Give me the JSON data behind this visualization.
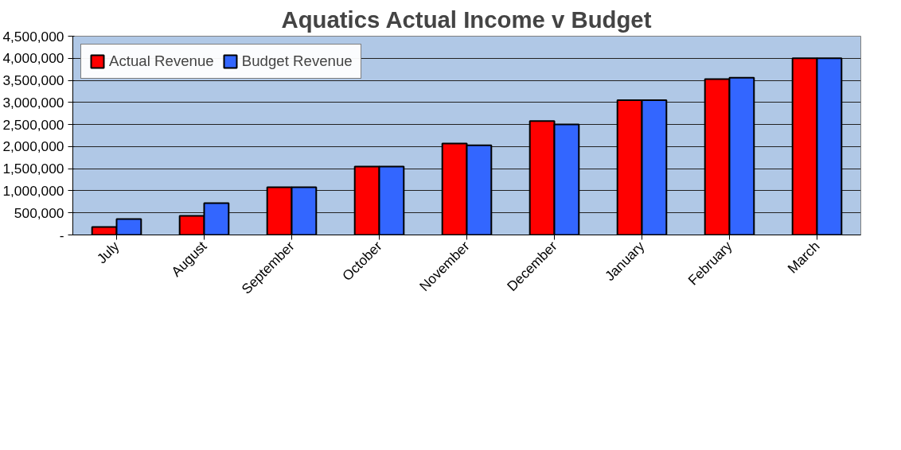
{
  "chart_data": {
    "type": "bar",
    "title": "Aquatics Actual Income v Budget",
    "categories": [
      "July",
      "August",
      "September",
      "October",
      "November",
      "December",
      "January",
      "February",
      "March"
    ],
    "series": [
      {
        "name": "Actual Revenue",
        "color": "#ff0000",
        "values": [
          180000,
          430000,
          1080000,
          1550000,
          2070000,
          2580000,
          3050000,
          3530000,
          4000000
        ]
      },
      {
        "name": "Budget Revenue",
        "color": "#3366ff",
        "values": [
          360000,
          720000,
          1080000,
          1550000,
          2030000,
          2500000,
          3050000,
          3560000,
          4000000
        ]
      }
    ],
    "ylim": [
      0,
      4500000
    ],
    "yticks": [
      {
        "value": 0,
        "label": "-"
      },
      {
        "value": 500000,
        "label": "500,000"
      },
      {
        "value": 1000000,
        "label": "1,000,000"
      },
      {
        "value": 1500000,
        "label": "1,500,000"
      },
      {
        "value": 2000000,
        "label": "2,000,000"
      },
      {
        "value": 2500000,
        "label": "2,500,000"
      },
      {
        "value": 3000000,
        "label": "3,000,000"
      },
      {
        "value": 3500000,
        "label": "3,500,000"
      },
      {
        "value": 4000000,
        "label": "4,000,000"
      },
      {
        "value": 4500000,
        "label": "4,500,000"
      }
    ],
    "grid": "y",
    "legend": "top left"
  }
}
